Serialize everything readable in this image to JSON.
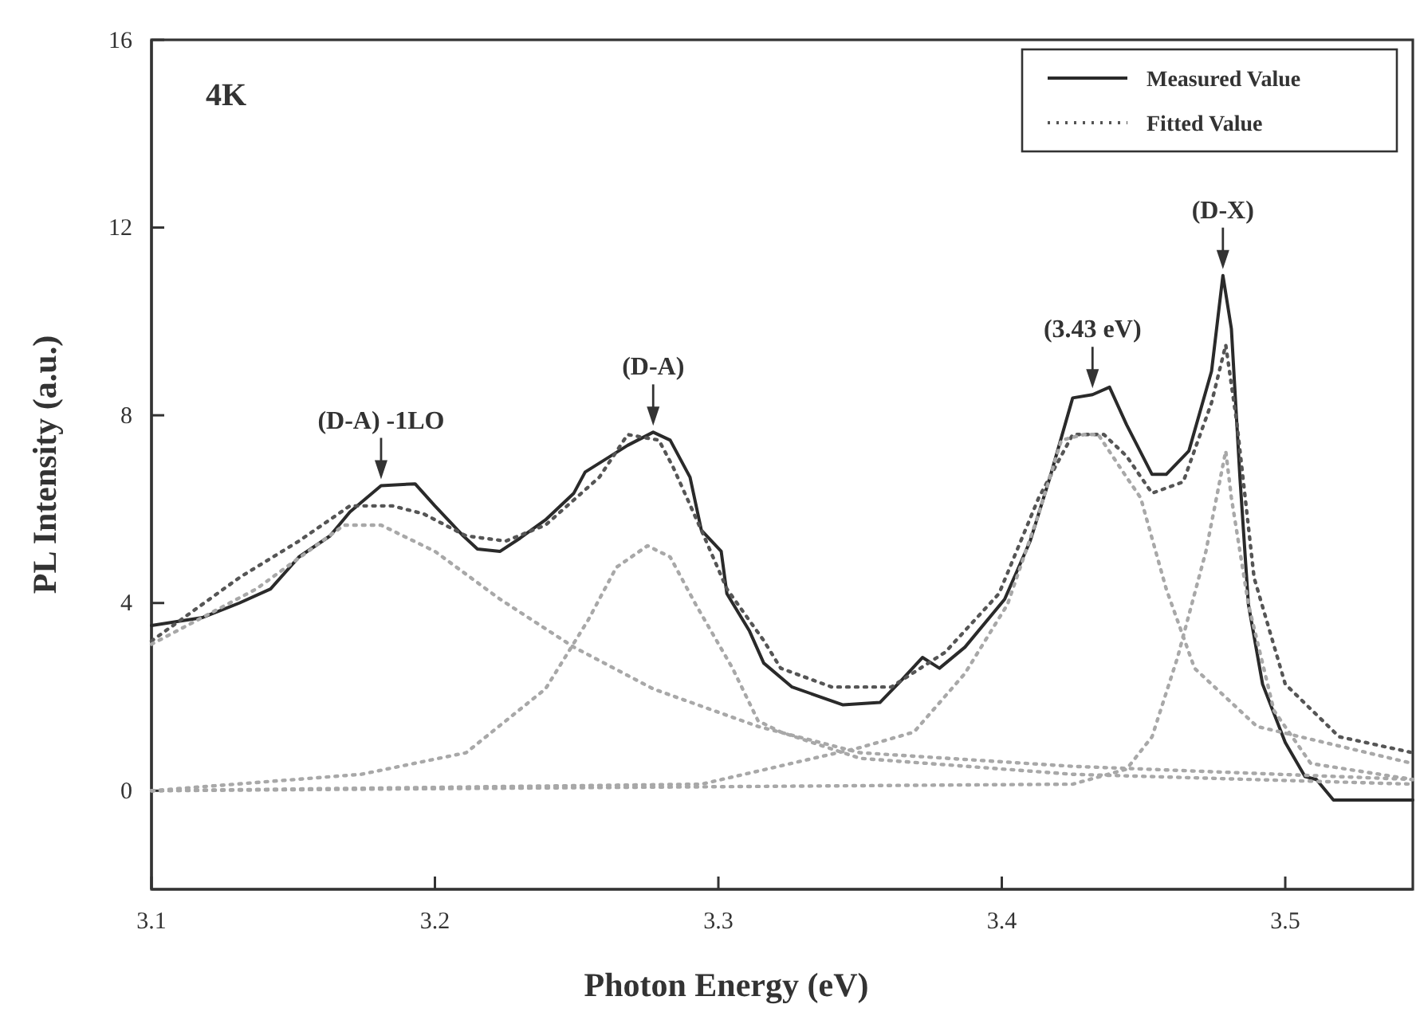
{
  "chart_data": {
    "type": "line",
    "xlabel": "Photon Energy (eV)",
    "ylabel": "PL Intensity (a.u.)",
    "xlim": [
      3.1,
      3.545
    ],
    "ylim": [
      -2.1,
      16
    ],
    "xticks": [
      3.1,
      3.2,
      3.3,
      3.4,
      3.5
    ],
    "yticks": [
      0,
      4,
      8,
      12,
      16
    ],
    "grid": false,
    "legend": "top right",
    "series": [
      {
        "name": "Measured Value",
        "color": "#2a2a2a",
        "line_style": "solid",
        "x": [
          3.1,
          3.118,
          3.131,
          3.142,
          3.152,
          3.163,
          3.17,
          3.181,
          3.193,
          3.2,
          3.21,
          3.215,
          3.223,
          3.23,
          3.239,
          3.249,
          3.253,
          3.268,
          3.277,
          3.283,
          3.29,
          3.294,
          3.301,
          3.303,
          3.311,
          3.316,
          3.326,
          3.344,
          3.357,
          3.365,
          3.372,
          3.378,
          3.387,
          3.401,
          3.41,
          3.417,
          3.425,
          3.432,
          3.438,
          3.444,
          3.453,
          3.458,
          3.466,
          3.474,
          3.478,
          3.481,
          3.484,
          3.487,
          3.492,
          3.5,
          3.507,
          3.511,
          3.517,
          3.545
        ],
        "values": [
          3.52,
          3.69,
          4.0,
          4.3,
          4.98,
          5.43,
          5.94,
          6.5,
          6.54,
          6.07,
          5.43,
          5.15,
          5.1,
          5.38,
          5.77,
          6.34,
          6.79,
          7.36,
          7.64,
          7.47,
          6.68,
          5.55,
          5.1,
          4.2,
          3.4,
          2.72,
          2.21,
          1.83,
          1.88,
          2.38,
          2.84,
          2.61,
          3.06,
          4.08,
          5.32,
          6.68,
          8.37,
          8.44,
          8.6,
          7.8,
          6.74,
          6.74,
          7.24,
          8.94,
          10.98,
          9.84,
          6.68,
          3.97,
          2.27,
          1.03,
          0.3,
          0.24,
          -0.2,
          -0.2
        ]
      },
      {
        "name": "Fitted Value",
        "color": "#555555",
        "line_style": "dotted",
        "x": [
          3.1,
          3.131,
          3.152,
          3.17,
          3.185,
          3.196,
          3.211,
          3.225,
          3.239,
          3.258,
          3.268,
          3.279,
          3.284,
          3.294,
          3.303,
          3.316,
          3.322,
          3.34,
          3.361,
          3.38,
          3.399,
          3.413,
          3.425,
          3.436,
          3.444,
          3.453,
          3.464,
          3.474,
          3.479,
          3.483,
          3.489,
          3.5,
          3.519,
          3.545
        ],
        "values": [
          3.19,
          4.54,
          5.32,
          6.07,
          6.07,
          5.9,
          5.43,
          5.32,
          5.66,
          6.68,
          7.59,
          7.47,
          6.9,
          5.55,
          4.3,
          3.2,
          2.61,
          2.21,
          2.21,
          2.95,
          4.2,
          6.24,
          7.59,
          7.59,
          7.13,
          6.34,
          6.58,
          8.27,
          9.5,
          7.8,
          4.54,
          2.27,
          1.15,
          0.81
        ]
      },
      {
        "color": "#a8a8a8",
        "line_style": "dotted",
        "x": [
          3.1,
          3.137,
          3.168,
          3.181,
          3.2,
          3.223,
          3.249,
          3.277,
          3.314,
          3.35,
          3.425,
          3.545
        ],
        "values": [
          3.12,
          4.3,
          5.66,
          5.66,
          5.1,
          4.08,
          3.06,
          2.17,
          1.37,
          0.81,
          0.52,
          0.24
        ]
      },
      {
        "color": "#a8a8a8",
        "line_style": "dotted",
        "x": [
          3.1,
          3.174,
          3.211,
          3.239,
          3.254,
          3.264,
          3.275,
          3.283,
          3.292,
          3.305,
          3.314,
          3.322,
          3.35,
          3.425,
          3.545
        ],
        "values": [
          0,
          0.35,
          0.81,
          2.17,
          3.63,
          4.76,
          5.22,
          4.98,
          3.97,
          2.61,
          1.49,
          1.25,
          0.69,
          0.35,
          0.14
        ]
      },
      {
        "color": "#a8a8a8",
        "line_style": "dotted",
        "x": [
          3.1,
          3.294,
          3.35,
          3.369,
          3.387,
          3.402,
          3.413,
          3.421,
          3.429,
          3.434,
          3.444,
          3.449,
          3.458,
          3.468,
          3.49,
          3.545
        ],
        "values": [
          0,
          0.14,
          0.92,
          1.25,
          2.5,
          3.97,
          5.9,
          7.47,
          7.59,
          7.59,
          6.68,
          6.24,
          4.3,
          2.61,
          1.37,
          0.58
        ]
      },
      {
        "color": "#a8a8a8",
        "line_style": "dotted",
        "x": [
          3.1,
          3.425,
          3.444,
          3.453,
          3.462,
          3.472,
          3.479,
          3.481,
          3.487,
          3.496,
          3.509,
          3.545
        ],
        "values": [
          0,
          0.14,
          0.46,
          1.15,
          2.84,
          5.1,
          7.24,
          6.24,
          3.97,
          1.71,
          0.58,
          0.24
        ]
      }
    ],
    "annotations": [
      "4K",
      {
        "text": "(D-A) -1LO",
        "x": 3.181,
        "y": 6.5
      },
      {
        "text": "(D-A)",
        "x": 3.277,
        "y": 7.64
      },
      {
        "text": "(3.43 eV)",
        "x": 3.432,
        "y": 8.44
      },
      {
        "text": "(D-X)",
        "x": 3.478,
        "y": 10.98
      }
    ]
  }
}
